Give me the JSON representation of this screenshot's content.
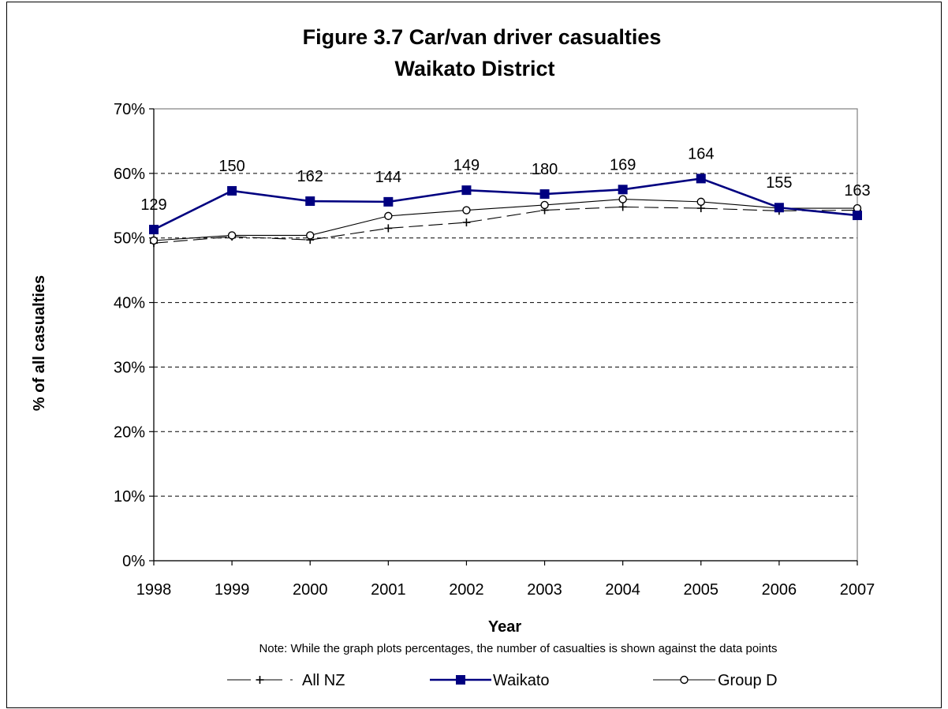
{
  "chart_data": {
    "type": "line",
    "title": "Figure 3.7 Car/van driver casualties",
    "subtitle": "Waikato District",
    "xlabel": "Year",
    "ylabel": "% of all casualties",
    "note": "Note: While the graph plots percentages, the number of casualties is shown  against the data points",
    "categories": [
      "1998",
      "1999",
      "2000",
      "2001",
      "2002",
      "2003",
      "2004",
      "2005",
      "2006",
      "2007"
    ],
    "ylim": [
      0,
      70
    ],
    "yticks": [
      0,
      10,
      20,
      30,
      40,
      50,
      60,
      70
    ],
    "ytick_labels": [
      "0%",
      "10%",
      "20%",
      "30%",
      "40%",
      "50%",
      "60%",
      "70%"
    ],
    "grid": "horizontal dashed",
    "legend_position": "bottom",
    "series": [
      {
        "name": "All NZ",
        "values": [
          49.2,
          50.2,
          49.7,
          51.5,
          52.4,
          54.3,
          54.8,
          54.6,
          54.2,
          54.3
        ],
        "color": "#000000",
        "marker": "plus",
        "line": "dashed"
      },
      {
        "name": "Waikato",
        "values": [
          51.3,
          57.3,
          55.7,
          55.6,
          57.4,
          56.8,
          57.5,
          59.2,
          54.7,
          53.5
        ],
        "color": "#000080",
        "marker": "square",
        "line": "solid",
        "data_labels": [
          "129",
          "150",
          "162",
          "144",
          "149",
          "180",
          "169",
          "164",
          "155",
          "163"
        ]
      },
      {
        "name": "Group D",
        "values": [
          49.6,
          50.4,
          50.4,
          53.4,
          54.3,
          55.1,
          56.0,
          55.6,
          54.6,
          54.6
        ],
        "color": "#000000",
        "marker": "circle",
        "line": "solid"
      }
    ]
  }
}
